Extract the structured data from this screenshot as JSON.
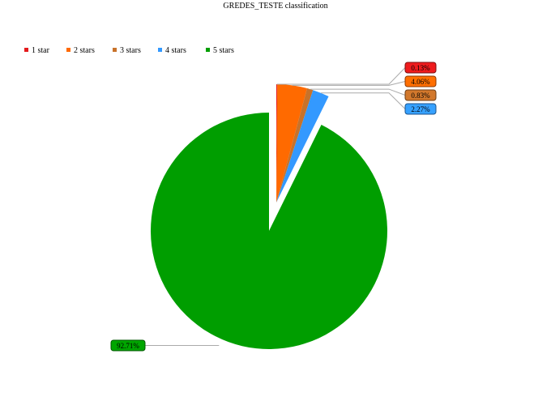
{
  "chart_data": {
    "type": "pie",
    "title": "GREDES_TESTE classification",
    "legend_position": "top-left",
    "categories": [
      "1 star",
      "2 stars",
      "3 stars",
      "4 stars",
      "5 stars"
    ],
    "values": [
      0.13,
      4.06,
      0.83,
      2.27,
      92.71
    ],
    "value_labels": [
      "0.13%",
      "4.06%",
      "0.83%",
      "2.27%",
      "92.71%"
    ],
    "colors": [
      "#e41a1c",
      "#ff6a00",
      "#c8722a",
      "#3399ff",
      "#009e00"
    ],
    "exploded": true
  }
}
